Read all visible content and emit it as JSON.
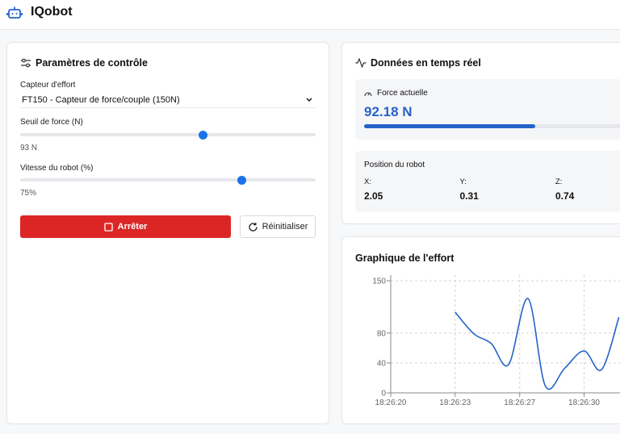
{
  "header": {
    "title": "IQobot"
  },
  "controls": {
    "title": "Paramètres de contrôle",
    "sensor": {
      "label": "Capteur d'effort",
      "value": "FT150 - Capteur de force/couple (150N)"
    },
    "threshold": {
      "label": "Seuil de force (N)",
      "value": 93,
      "value_label": "93 N",
      "range": [
        0,
        150
      ]
    },
    "speed": {
      "label": "Vitesse du robot (%)",
      "value": 75,
      "value_label": "75%",
      "range": [
        0,
        100
      ]
    },
    "buttons": {
      "stop": "Arrêter",
      "reset": "Réinitialiser"
    }
  },
  "realtime": {
    "title": "Données en temps réel",
    "force": {
      "label": "Force actuelle",
      "value": 92.18,
      "value_label": "92.18 N",
      "range": [
        0,
        150
      ]
    },
    "position": {
      "label": "Position du robot",
      "axes": [
        {
          "label": "X:",
          "value": "2.05"
        },
        {
          "label": "Y:",
          "value": "0.31"
        },
        {
          "label": "Z:",
          "value": "0.74"
        }
      ]
    }
  },
  "chart_data": {
    "type": "line",
    "title": "Graphique de l'effort",
    "color": "#2563c9",
    "grid": true,
    "x": [
      23.33,
      24.3,
      25.2,
      26.1,
      27.1,
      28.0,
      29.0,
      30.0,
      30.9,
      31.8
    ],
    "values": [
      108,
      79,
      66,
      38,
      126,
      9,
      33,
      56,
      31,
      101
    ],
    "xlim": [
      20,
      31.9
    ],
    "ylim": [
      0,
      150
    ],
    "xticks": [
      {
        "value": 20,
        "label": "18:26:20"
      },
      {
        "value": 23.33,
        "label": "18:26:23"
      },
      {
        "value": 26.67,
        "label": "18:26:27"
      },
      {
        "value": 30,
        "label": "18:26:30"
      }
    ],
    "yticks": [
      0,
      40,
      80,
      150
    ]
  }
}
